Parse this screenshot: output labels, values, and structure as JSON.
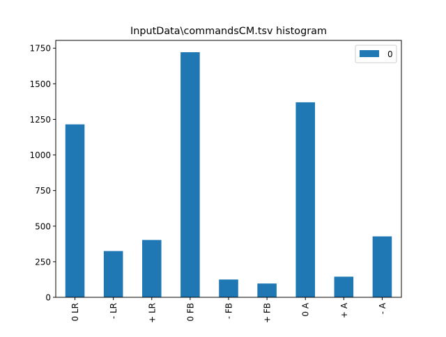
{
  "chart_data": {
    "type": "bar",
    "title": "InputData\\commandsCM.tsv histogram",
    "xlabel": "",
    "ylabel": "",
    "categories": [
      "0 LR",
      "- LR",
      "+ LR",
      "0 FB",
      "- FB",
      "+ FB",
      "0 A",
      "+ A",
      "- A"
    ],
    "series": [
      {
        "name": "0",
        "color": "#1f77b4",
        "values": [
          1215,
          325,
          403,
          1722,
          125,
          97,
          1370,
          145,
          428
        ]
      }
    ],
    "ylim": [
      0,
      1805
    ],
    "yticks": [
      0,
      250,
      500,
      750,
      1000,
      1250,
      1500,
      1750
    ],
    "grid": false,
    "legend_position": "top-right"
  }
}
